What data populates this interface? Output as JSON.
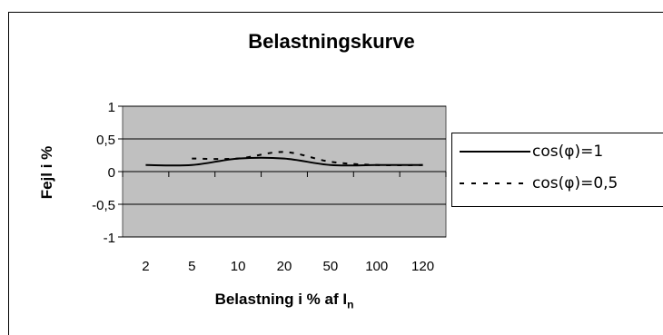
{
  "chart_data": {
    "type": "line",
    "title": "Belastningskurve",
    "xlabel": "Belastning i % af I",
    "xlabel_sub": "n",
    "ylabel": "Fejl i %",
    "categories": [
      "2",
      "5",
      "10",
      "20",
      "50",
      "100",
      "120"
    ],
    "ylim": [
      -1,
      1
    ],
    "y_ticks": [
      "1",
      "0,5",
      "0",
      "-0,5",
      "-1"
    ],
    "y_tick_values": [
      1,
      0.5,
      0,
      -0.5,
      -1
    ],
    "grid": true,
    "legend_position": "right",
    "series": [
      {
        "name": "cos(φ)=1",
        "style": "solid",
        "values": [
          0.1,
          0.1,
          0.2,
          0.2,
          0.1,
          0.1,
          0.1
        ]
      },
      {
        "name": "cos(φ)=0,5",
        "style": "dotted",
        "values": [
          null,
          0.2,
          0.2,
          0.3,
          0.15,
          0.1,
          0.1
        ]
      }
    ],
    "colors": {
      "plot_background": "#c0c0c0",
      "line": "#000000"
    }
  }
}
